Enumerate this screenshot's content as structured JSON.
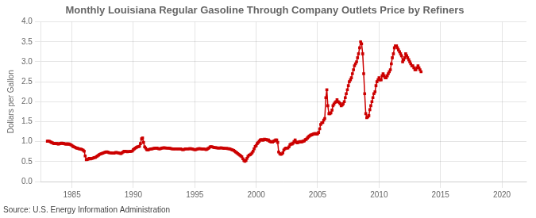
{
  "chart_data": {
    "type": "line",
    "title": "Monthly Louisiana Regular Gasoline Through Company Outlets Price by Refiners",
    "ylabel": "Dollars per Gallon",
    "source": "Source: U.S. Energy Information Administration",
    "color": "#cc0000",
    "marker": "square",
    "grid": true,
    "xlim": [
      1982.5,
      2022
    ],
    "ylim": [
      0.0,
      4.0
    ],
    "xticks": [
      1985,
      1990,
      1995,
      2000,
      2005,
      2010,
      2015,
      2020
    ],
    "yticks": [
      {
        "value": 0.0,
        "label": "0.0"
      },
      0.5,
      {
        "value": 1.0,
        "label": "1.0"
      },
      1.5,
      {
        "value": 2.0,
        "label": "2.0"
      },
      2.5,
      {
        "value": 3.0,
        "label": "3.0"
      },
      3.5,
      {
        "value": 4.0,
        "label": "4.0"
      }
    ],
    "x": [
      1983.0,
      1983.08,
      1983.17,
      1983.25,
      1983.33,
      1983.42,
      1983.5,
      1983.58,
      1983.67,
      1983.75,
      1983.83,
      1983.92,
      1984.0,
      1984.08,
      1984.17,
      1984.25,
      1984.33,
      1984.42,
      1984.5,
      1984.58,
      1984.67,
      1984.75,
      1984.83,
      1984.92,
      1985.0,
      1985.08,
      1985.17,
      1985.25,
      1985.33,
      1985.42,
      1985.5,
      1985.58,
      1985.67,
      1985.75,
      1985.83,
      1985.92,
      1986.0,
      1986.08,
      1986.17,
      1986.25,
      1986.33,
      1986.42,
      1986.5,
      1986.58,
      1986.67,
      1986.75,
      1986.83,
      1986.92,
      1987.0,
      1987.08,
      1987.17,
      1987.25,
      1987.33,
      1987.42,
      1987.5,
      1987.58,
      1987.67,
      1987.75,
      1987.83,
      1987.92,
      1988.0,
      1988.08,
      1988.17,
      1988.25,
      1988.33,
      1988.42,
      1988.5,
      1988.58,
      1988.67,
      1988.75,
      1988.83,
      1988.92,
      1989.0,
      1989.08,
      1989.17,
      1989.25,
      1989.33,
      1989.42,
      1989.5,
      1989.58,
      1989.67,
      1989.75,
      1989.83,
      1989.92,
      1990.0,
      1990.08,
      1990.17,
      1990.25,
      1990.33,
      1990.42,
      1990.5,
      1990.58,
      1990.67,
      1990.75,
      1990.83,
      1990.92,
      1991.0,
      1991.08,
      1991.17,
      1991.25,
      1991.33,
      1991.42,
      1991.5,
      1991.58,
      1991.67,
      1991.75,
      1991.83,
      1991.92,
      1992.0,
      1992.08,
      1992.17,
      1992.25,
      1992.33,
      1992.42,
      1992.5,
      1992.58,
      1992.67,
      1992.75,
      1992.83,
      1992.92,
      1993.0,
      1993.08,
      1993.17,
      1993.25,
      1993.33,
      1993.42,
      1993.5,
      1993.58,
      1993.67,
      1993.75,
      1993.83,
      1993.92,
      1994.0,
      1994.08,
      1994.17,
      1994.25,
      1994.33,
      1994.42,
      1994.5,
      1994.58,
      1994.67,
      1994.75,
      1994.83,
      1994.92,
      1995.0,
      1995.08,
      1995.17,
      1995.25,
      1995.33,
      1995.42,
      1995.5,
      1995.58,
      1995.67,
      1995.75,
      1995.83,
      1995.92,
      1996.0,
      1996.08,
      1996.17,
      1996.25,
      1996.33,
      1996.42,
      1996.5,
      1996.58,
      1996.67,
      1996.75,
      1996.83,
      1996.92,
      1997.0,
      1997.08,
      1997.17,
      1997.25,
      1997.33,
      1997.42,
      1997.5,
      1997.58,
      1997.67,
      1997.75,
      1997.83,
      1997.92,
      1998.0,
      1998.08,
      1998.17,
      1998.25,
      1998.33,
      1998.42,
      1998.5,
      1998.58,
      1998.67,
      1998.75,
      1998.83,
      1998.92,
      1999.0,
      1999.08,
      1999.17,
      1999.25,
      1999.33,
      1999.42,
      1999.5,
      1999.58,
      1999.67,
      1999.75,
      1999.83,
      1999.92,
      2000.0,
      2000.08,
      2000.17,
      2000.25,
      2000.33,
      2000.42,
      2000.5,
      2000.58,
      2000.67,
      2000.75,
      2000.83,
      2000.92,
      2001.0,
      2001.08,
      2001.17,
      2001.25,
      2001.33,
      2001.42,
      2001.5,
      2001.58,
      2001.67,
      2001.75,
      2001.83,
      2001.92,
      2002.0,
      2002.08,
      2002.17,
      2002.25,
      2002.33,
      2002.42,
      2002.5,
      2002.58,
      2002.67,
      2002.75,
      2002.83,
      2002.92,
      2003.0,
      2003.08,
      2003.17,
      2003.25,
      2003.33,
      2003.42,
      2003.5,
      2003.58,
      2003.67,
      2003.75,
      2003.83,
      2003.92,
      2004.0,
      2004.08,
      2004.17,
      2004.25,
      2004.33,
      2004.42,
      2004.5,
      2004.58,
      2004.67,
      2004.75,
      2004.83,
      2004.92,
      2005.0,
      2005.08,
      2005.17,
      2005.25,
      2005.33,
      2005.42,
      2005.5,
      2005.58,
      2005.67,
      2005.75,
      2005.83,
      2005.92,
      2006.0,
      2006.08,
      2006.17,
      2006.25,
      2006.33,
      2006.42,
      2006.5,
      2006.58,
      2006.67,
      2006.75,
      2006.83,
      2006.92,
      2007.0,
      2007.08,
      2007.17,
      2007.25,
      2007.33,
      2007.42,
      2007.5,
      2007.58,
      2007.67,
      2007.75,
      2007.83,
      2007.92,
      2008.0,
      2008.08,
      2008.17,
      2008.25,
      2008.33,
      2008.42,
      2008.5,
      2008.58,
      2008.67,
      2008.75,
      2008.83,
      2008.92,
      2009.0,
      2009.08,
      2009.17,
      2009.25,
      2009.33,
      2009.42,
      2009.5,
      2009.58,
      2009.67,
      2009.75,
      2009.83,
      2009.92,
      2010.0,
      2010.08,
      2010.17,
      2010.25,
      2010.33,
      2010.42,
      2010.5,
      2010.58,
      2010.67,
      2010.75,
      2010.83,
      2010.92,
      2011.0,
      2011.08,
      2011.17,
      2011.25,
      2011.33,
      2011.42,
      2011.5,
      2011.58,
      2011.67,
      2011.75,
      2011.83,
      2011.92,
      2012.0,
      2012.08,
      2012.17,
      2012.25,
      2012.33,
      2012.42,
      2012.5,
      2012.58,
      2012.67,
      2012.75,
      2012.83,
      2012.92,
      2013.0,
      2013.08,
      2013.17,
      2013.25,
      2013.33,
      2013.42
    ],
    "values": [
      1.011,
      1.013,
      1.009,
      0.993,
      0.98,
      0.967,
      0.957,
      0.952,
      0.952,
      0.953,
      0.946,
      0.94,
      0.949,
      0.958,
      0.96,
      0.956,
      0.95,
      0.943,
      0.94,
      0.94,
      0.94,
      0.94,
      0.933,
      0.918,
      0.903,
      0.882,
      0.87,
      0.86,
      0.845,
      0.836,
      0.83,
      0.82,
      0.814,
      0.81,
      0.8,
      0.785,
      0.76,
      0.64,
      0.545,
      0.55,
      0.565,
      0.58,
      0.565,
      0.575,
      0.58,
      0.59,
      0.6,
      0.605,
      0.625,
      0.64,
      0.66,
      0.68,
      0.69,
      0.7,
      0.71,
      0.72,
      0.73,
      0.74,
      0.745,
      0.74,
      0.725,
      0.72,
      0.72,
      0.715,
      0.71,
      0.71,
      0.72,
      0.73,
      0.725,
      0.72,
      0.715,
      0.705,
      0.7,
      0.72,
      0.74,
      0.76,
      0.76,
      0.755,
      0.745,
      0.75,
      0.75,
      0.755,
      0.76,
      0.765,
      0.8,
      0.82,
      0.84,
      0.855,
      0.87,
      0.875,
      0.885,
      0.95,
      1.07,
      1.09,
      0.98,
      0.87,
      0.84,
      0.8,
      0.79,
      0.8,
      0.81,
      0.815,
      0.82,
      0.825,
      0.83,
      0.835,
      0.84,
      0.84,
      0.83,
      0.82,
      0.82,
      0.83,
      0.84,
      0.845,
      0.845,
      0.845,
      0.84,
      0.84,
      0.84,
      0.835,
      0.83,
      0.825,
      0.82,
      0.82,
      0.82,
      0.82,
      0.82,
      0.82,
      0.82,
      0.82,
      0.82,
      0.81,
      0.8,
      0.8,
      0.81,
      0.82,
      0.82,
      0.82,
      0.82,
      0.825,
      0.825,
      0.82,
      0.815,
      0.805,
      0.8,
      0.8,
      0.81,
      0.82,
      0.825,
      0.825,
      0.82,
      0.815,
      0.815,
      0.815,
      0.81,
      0.8,
      0.81,
      0.83,
      0.845,
      0.87,
      0.875,
      0.87,
      0.86,
      0.855,
      0.85,
      0.845,
      0.845,
      0.84,
      0.84,
      0.845,
      0.845,
      0.84,
      0.835,
      0.83,
      0.83,
      0.83,
      0.825,
      0.825,
      0.82,
      0.81,
      0.8,
      0.79,
      0.78,
      0.76,
      0.74,
      0.72,
      0.7,
      0.68,
      0.66,
      0.64,
      0.62,
      0.57,
      0.53,
      0.51,
      0.53,
      0.58,
      0.63,
      0.66,
      0.67,
      0.69,
      0.72,
      0.76,
      0.82,
      0.88,
      0.9,
      0.95,
      0.98,
      1.01,
      1.04,
      1.05,
      1.04,
      1.04,
      1.06,
      1.05,
      1.05,
      1.04,
      1.04,
      1.01,
      1.0,
      0.99,
      0.99,
      1.01,
      1.02,
      1.04,
      1.04,
      0.98,
      0.74,
      0.7,
      0.68,
      0.69,
      0.72,
      0.79,
      0.82,
      0.84,
      0.84,
      0.84,
      0.87,
      0.92,
      0.94,
      0.94,
      0.96,
      1.0,
      1.04,
      0.99,
      0.97,
      0.98,
      0.99,
      1.0,
      0.99,
      1.0,
      1.01,
      1.02,
      1.05,
      1.06,
      1.09,
      1.12,
      1.14,
      1.16,
      1.17,
      1.18,
      1.19,
      1.2,
      1.2,
      1.19,
      1.2,
      1.23,
      1.32,
      1.43,
      1.47,
      1.48,
      1.54,
      1.58,
      2.1,
      2.3,
      1.9,
      1.7,
      1.7,
      1.72,
      1.79,
      1.9,
      1.94,
      1.98,
      2.0,
      2.05,
      2.0,
      1.98,
      1.95,
      1.9,
      1.92,
      1.95,
      2.0,
      2.1,
      2.2,
      2.3,
      2.4,
      2.5,
      2.55,
      2.6,
      2.7,
      2.8,
      2.9,
      2.95,
      3.0,
      3.1,
      3.2,
      3.35,
      3.5,
      3.45,
      3.2,
      2.7,
      2.2,
      1.7,
      1.6,
      1.62,
      1.65,
      1.8,
      1.9,
      2.0,
      2.1,
      2.2,
      2.25,
      2.4,
      2.5,
      2.55,
      2.6,
      2.55,
      2.55,
      2.65,
      2.7,
      2.65,
      2.6,
      2.6,
      2.65,
      2.7,
      2.75,
      2.8,
      2.95,
      3.1,
      3.2,
      3.35,
      3.4,
      3.4,
      3.35,
      3.3,
      3.25,
      3.2,
      3.15,
      3.0,
      3.05,
      3.1,
      3.2,
      3.15,
      3.1,
      3.05,
      3.0,
      2.95,
      2.9,
      2.9,
      2.85,
      2.8,
      2.8,
      2.85,
      2.9,
      2.85,
      2.8,
      2.75
    ]
  }
}
